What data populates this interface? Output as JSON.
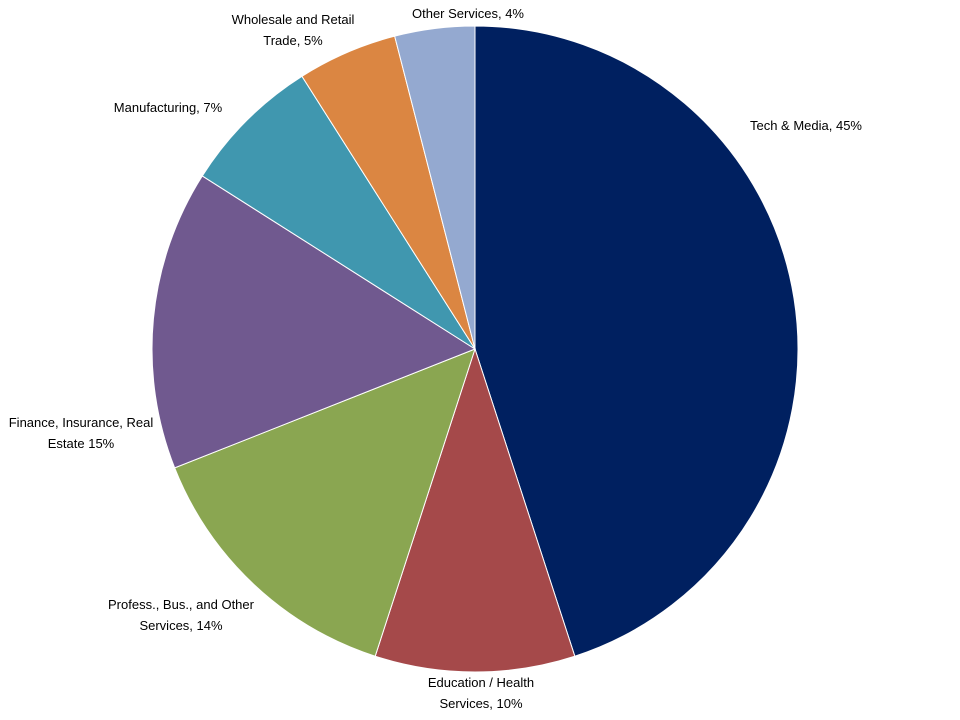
{
  "chart_data": {
    "type": "pie",
    "title": "",
    "slices": [
      {
        "label_lines": [
          "Tech & Media, 45%"
        ],
        "value": 45,
        "color": "#002060"
      },
      {
        "label_lines": [
          "Education / Health",
          "Services, 10%"
        ],
        "value": 10,
        "color": "#A5494A"
      },
      {
        "label_lines": [
          "Profess., Bus., and Other",
          "Services, 14%"
        ],
        "value": 14,
        "color": "#8AA651"
      },
      {
        "label_lines": [
          "Finance, Insurance, Real",
          "Estate 15%"
        ],
        "value": 15,
        "color": "#70598F"
      },
      {
        "label_lines": [
          "Manufacturing, 7%"
        ],
        "value": 7,
        "color": "#4097AF"
      },
      {
        "label_lines": [
          "Wholesale and Retail",
          "Trade, 5%"
        ],
        "value": 5,
        "color": "#DB8642"
      },
      {
        "label_lines": [
          "Other Services, 4%"
        ],
        "value": 4,
        "color": "#94A9D0"
      }
    ],
    "legend": "none",
    "direction": "clockwise",
    "start": "top"
  }
}
